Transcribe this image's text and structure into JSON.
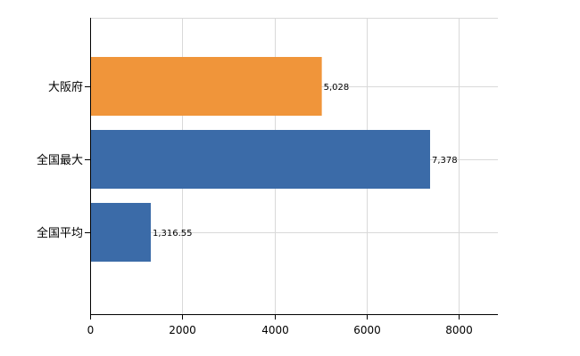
{
  "chart_data": {
    "type": "bar",
    "orientation": "horizontal",
    "categories": [
      "大阪府",
      "全国最大",
      "全国平均"
    ],
    "values": [
      5028,
      7378,
      1316.55
    ],
    "data_labels": [
      "5,028",
      "7,378",
      "1,316.55"
    ],
    "bar_colors": [
      "#f0953a",
      "#3b6ba8",
      "#3b6ba8"
    ],
    "x_ticks": [
      0,
      2000,
      4000,
      6000,
      8000
    ],
    "x_tick_labels": [
      "0",
      "2000",
      "4000",
      "6000",
      "8000"
    ],
    "xlim": [
      0,
      8850
    ],
    "grid": true,
    "legend": "none",
    "title": "",
    "xlabel": "",
    "ylabel": ""
  }
}
